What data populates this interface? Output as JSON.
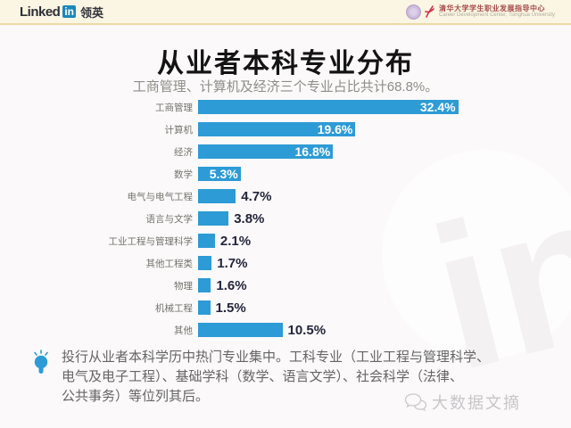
{
  "header": {
    "linkedin": {
      "word": "Linked",
      "badge": "in",
      "cn": "领英"
    },
    "tsinghua": {
      "name_cn": "清华大学学生职业发展指导中心",
      "name_en": "Career Development Center, Tsinghua University"
    }
  },
  "title": "从业者本科专业分布",
  "subtitle": "工商管理、计算机及经济三个专业占比共计68.8%。",
  "chart_data": {
    "type": "bar",
    "orientation": "horizontal",
    "title": "从业者本科专业分布",
    "unit": "%",
    "xlim": [
      0,
      33
    ],
    "grid": false,
    "legend": "none",
    "bar_color": "#2d9bd5",
    "categories": [
      "工商管理",
      "计算机",
      "经济",
      "数学",
      "电气与电气工程",
      "语言与文学",
      "工业工程与管理科学",
      "其他工程类",
      "物理",
      "机械工程",
      "其他"
    ],
    "values": [
      32.4,
      19.6,
      16.8,
      5.3,
      4.7,
      3.8,
      2.1,
      1.7,
      1.6,
      1.5,
      10.5
    ],
    "items": [
      {
        "label": "工商管理",
        "value": 32.4,
        "display": "32.4%",
        "label_inside": true
      },
      {
        "label": "计算机",
        "value": 19.6,
        "display": "19.6%",
        "label_inside": true
      },
      {
        "label": "经济",
        "value": 16.8,
        "display": "16.8%",
        "label_inside": true
      },
      {
        "label": "数学",
        "value": 5.3,
        "display": "5.3%",
        "label_inside": true
      },
      {
        "label": "电气与电气工程",
        "value": 4.7,
        "display": "4.7%",
        "label_inside": false
      },
      {
        "label": "语言与文学",
        "value": 3.8,
        "display": "3.8%",
        "label_inside": false
      },
      {
        "label": "工业工程与管理科学",
        "value": 2.1,
        "display": "2.1%",
        "label_inside": false
      },
      {
        "label": "其他工程类",
        "value": 1.7,
        "display": "1.7%",
        "label_inside": false
      },
      {
        "label": "物理",
        "value": 1.6,
        "display": "1.6%",
        "label_inside": false
      },
      {
        "label": "机械工程",
        "value": 1.5,
        "display": "1.5%",
        "label_inside": false
      },
      {
        "label": "其他",
        "value": 10.5,
        "display": "10.5%",
        "label_inside": false
      }
    ]
  },
  "note": {
    "lines": [
      "投行从业者本科学历中热门专业集中。工科专业（工业工程与管理科学、",
      "电气及电子工程）、基础学科（数学、语言文学）、社会科学（法律、",
      "公共事务）等位列其后。"
    ]
  },
  "watermarks": {
    "linkedin_in": "in",
    "brand": "大数据文摘"
  },
  "colors": {
    "bar_blue": "#2d9bd5",
    "header_bg": "#fbf6e3",
    "header_line": "#e9d9a5",
    "value_dark": "#23263b",
    "note_gray": "#656565"
  }
}
